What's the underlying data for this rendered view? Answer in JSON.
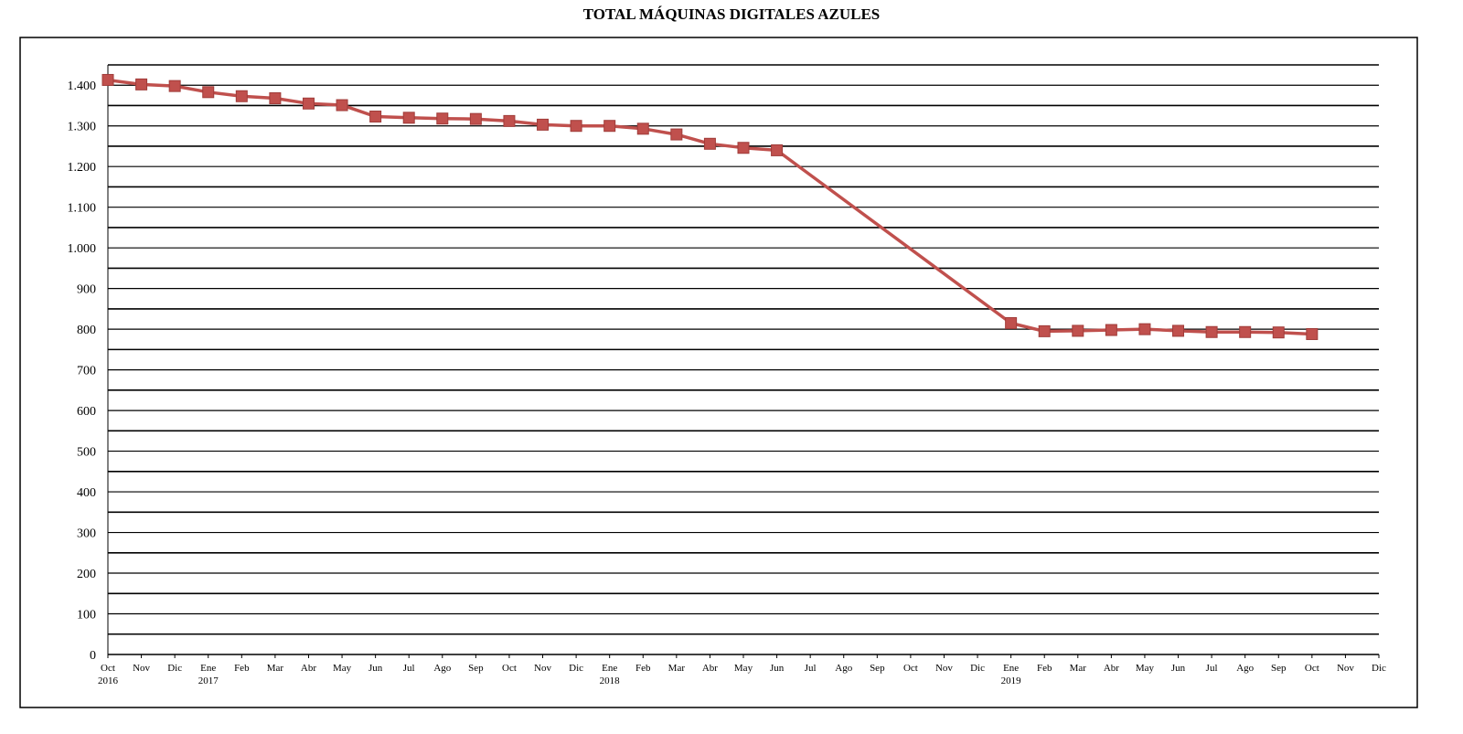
{
  "chart_data": {
    "type": "line",
    "title": "TOTAL MÁQUINAS DIGITALES AZULES",
    "xlabel": "",
    "ylabel": "",
    "ylim": [
      0,
      1400
    ],
    "y_ticks": [
      0,
      100,
      200,
      300,
      400,
      500,
      600,
      700,
      800,
      900,
      1000,
      1100,
      1200,
      1300,
      1400
    ],
    "y_tick_labels": [
      "0",
      "100",
      "200",
      "300",
      "400",
      "500",
      "600",
      "700",
      "800",
      "900",
      "1.000",
      "1.100",
      "1.200",
      "1.300",
      "1.400"
    ],
    "x_tick_labels": [
      "Oct",
      "Nov",
      "Dic",
      "Ene",
      "Feb",
      "Mar",
      "Abr",
      "May",
      "Jun",
      "Jul",
      "Ago",
      "Sep",
      "Oct",
      "Nov",
      "Dic",
      "Ene",
      "Feb",
      "Mar",
      "Abr",
      "May",
      "Jun",
      "Jul",
      "Ago",
      "Sep",
      "Oct",
      "Nov",
      "Dic",
      "Ene",
      "Feb",
      "Mar",
      "Abr",
      "May",
      "Jun",
      "Jul",
      "Ago",
      "Sep",
      "Oct",
      "Nov",
      "Dic"
    ],
    "year_labels": [
      {
        "index": 0,
        "text": "2016"
      },
      {
        "index": 3,
        "text": "2017"
      },
      {
        "index": 15,
        "text": "2018"
      },
      {
        "index": 27,
        "text": "2019"
      }
    ],
    "grid": true,
    "legend": "none",
    "series": [
      {
        "color": "#c0504d",
        "points": [
          {
            "i": 0,
            "y": 1413
          },
          {
            "i": 1,
            "y": 1402
          },
          {
            "i": 2,
            "y": 1398
          },
          {
            "i": 3,
            "y": 1383
          },
          {
            "i": 4,
            "y": 1373
          },
          {
            "i": 5,
            "y": 1368
          },
          {
            "i": 6,
            "y": 1355
          },
          {
            "i": 7,
            "y": 1351
          },
          {
            "i": 8,
            "y": 1323
          },
          {
            "i": 9,
            "y": 1320
          },
          {
            "i": 10,
            "y": 1318
          },
          {
            "i": 11,
            "y": 1317
          },
          {
            "i": 12,
            "y": 1312
          },
          {
            "i": 13,
            "y": 1303
          },
          {
            "i": 14,
            "y": 1300
          },
          {
            "i": 15,
            "y": 1300
          },
          {
            "i": 16,
            "y": 1293
          },
          {
            "i": 17,
            "y": 1279
          },
          {
            "i": 18,
            "y": 1256
          },
          {
            "i": 19,
            "y": 1246
          },
          {
            "i": 20,
            "y": 1240
          },
          {
            "i": 27,
            "y": 815
          },
          {
            "i": 28,
            "y": 795
          },
          {
            "i": 29,
            "y": 796
          },
          {
            "i": 30,
            "y": 798
          },
          {
            "i": 31,
            "y": 800
          },
          {
            "i": 32,
            "y": 796
          },
          {
            "i": 33,
            "y": 793
          },
          {
            "i": 34,
            "y": 793
          },
          {
            "i": 35,
            "y": 792
          },
          {
            "i": 36,
            "y": 788
          }
        ]
      }
    ]
  }
}
